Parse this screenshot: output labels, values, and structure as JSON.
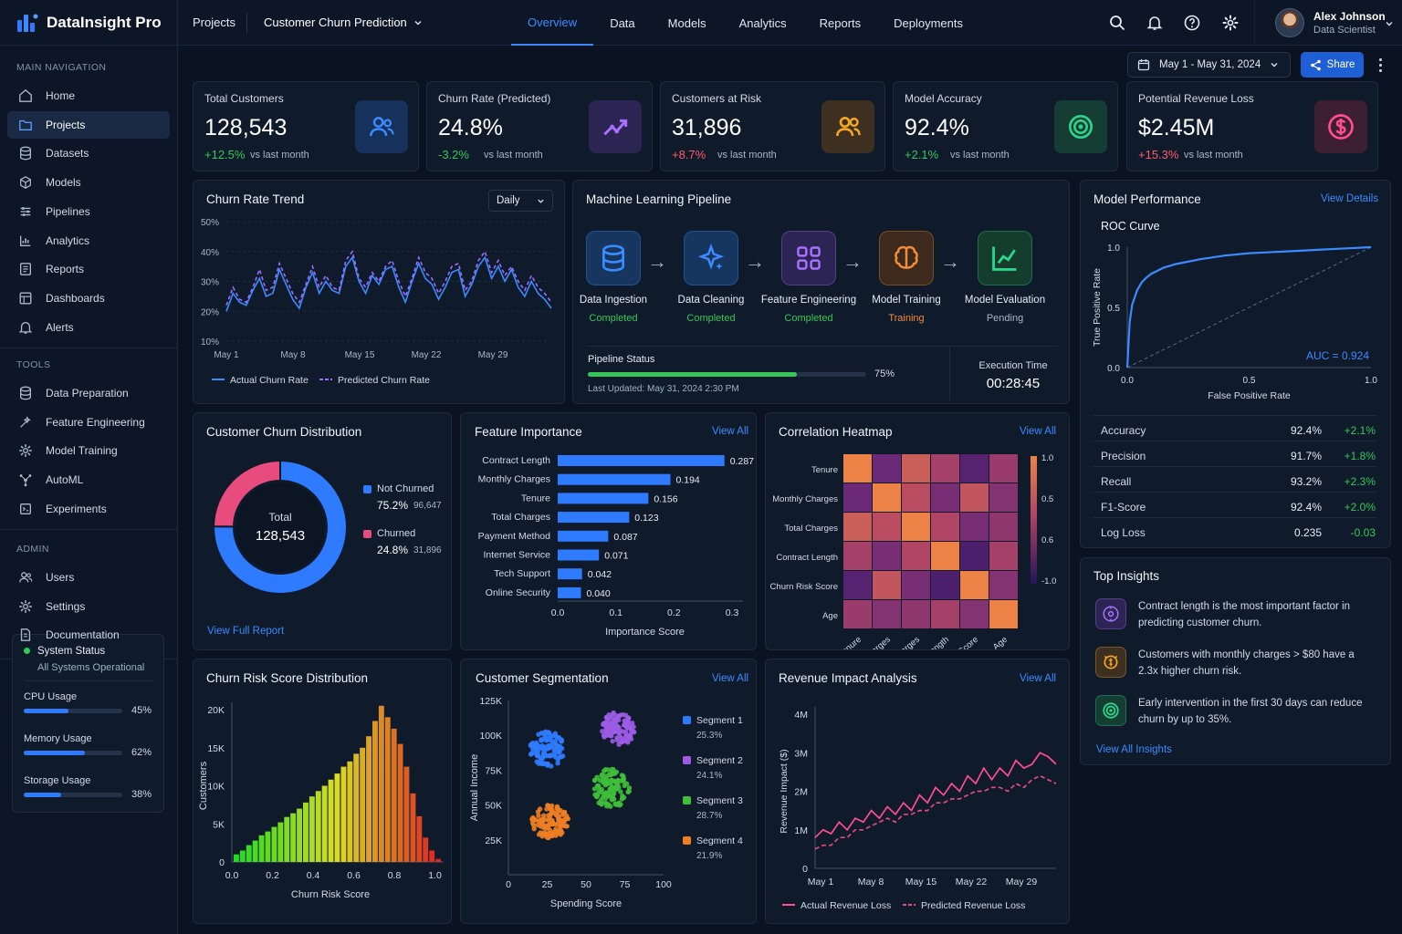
{
  "app": {
    "name": "DataInsight Pro"
  },
  "topbar": {
    "projects_label": "Projects",
    "project_name": "Customer Churn Prediction",
    "tabs": [
      {
        "label": "Overview",
        "active": true
      },
      {
        "label": "Data"
      },
      {
        "label": "Models"
      },
      {
        "label": "Analytics"
      },
      {
        "label": "Reports"
      },
      {
        "label": "Deployments"
      }
    ],
    "icons": [
      "search-icon",
      "bell-icon",
      "help-icon",
      "gear-icon"
    ]
  },
  "user": {
    "name": "Alex Johnson",
    "role": "Data Scientist"
  },
  "sidebar": {
    "sections": [
      {
        "title": "MAIN NAVIGATION",
        "items": [
          {
            "label": "Home",
            "icon": "home-icon"
          },
          {
            "label": "Projects",
            "icon": "folder-icon",
            "active": true
          },
          {
            "label": "Datasets",
            "icon": "database-icon"
          },
          {
            "label": "Models",
            "icon": "cube-icon"
          },
          {
            "label": "Pipelines",
            "icon": "pipeline-icon"
          },
          {
            "label": "Analytics",
            "icon": "chart-icon"
          },
          {
            "label": "Reports",
            "icon": "report-icon"
          },
          {
            "label": "Dashboards",
            "icon": "dashboard-icon"
          },
          {
            "label": "Alerts",
            "icon": "bell-icon"
          }
        ]
      },
      {
        "title": "TOOLS",
        "items": [
          {
            "label": "Data Preparation",
            "icon": "database-icon"
          },
          {
            "label": "Feature Engineering",
            "icon": "wand-icon"
          },
          {
            "label": "Model Training",
            "icon": "gear-icon"
          },
          {
            "label": "AutoML",
            "icon": "automl-icon"
          },
          {
            "label": "Experiments",
            "icon": "flask-icon"
          }
        ]
      },
      {
        "title": "ADMIN",
        "items": [
          {
            "label": "Users",
            "icon": "users-icon"
          },
          {
            "label": "Settings",
            "icon": "gear-icon"
          },
          {
            "label": "Documentation",
            "icon": "doc-icon"
          }
        ]
      }
    ]
  },
  "system": {
    "title": "System Status",
    "subtitle": "All Systems Operational",
    "status_color": "#35c759",
    "metrics": [
      {
        "label": "CPU Usage",
        "value": 45,
        "display": "45%"
      },
      {
        "label": "Memory Usage",
        "value": 62,
        "display": "62%"
      },
      {
        "label": "Storage Usage",
        "value": 38,
        "display": "38%"
      }
    ]
  },
  "toolbar": {
    "date_range": "May 1 - May 31, 2024",
    "share_label": "Share"
  },
  "kpis": [
    {
      "label": "Total Customers",
      "value": "128,543",
      "change": "+12.5%",
      "trend": "pos",
      "vs": "vs last month",
      "icon": "users-icon",
      "color": "#3b8bff",
      "bg": "#16325c"
    },
    {
      "label": "Churn Rate (Predicted)",
      "value": "24.8%",
      "change": "-3.2%",
      "trend": "pos",
      "vs": "vs last month",
      "icon": "trend-icon",
      "color": "#a970ff",
      "bg": "#2c2452"
    },
    {
      "label": "Customers at Risk",
      "value": "31,896",
      "change": "+8.7%",
      "trend": "neg",
      "vs": "vs last month",
      "icon": "users-risk-icon",
      "color": "#f5a623",
      "bg": "#3d3020"
    },
    {
      "label": "Model Accuracy",
      "value": "92.4%",
      "change": "+2.1%",
      "trend": "pos",
      "vs": "vs last month",
      "icon": "target-icon",
      "color": "#2bd68a",
      "bg": "#153d33"
    },
    {
      "label": "Potential Revenue Loss",
      "value": "$2.45M",
      "change": "+15.3%",
      "trend": "neg",
      "vs": "vs last month",
      "icon": "dollar-icon",
      "color": "#ff4d8d",
      "bg": "#3d1f33"
    }
  ],
  "churn_trend": {
    "title": "Churn Rate Trend",
    "period": "Daily",
    "legend": [
      "Actual Churn Rate",
      "Predicted Churn Rate"
    ]
  },
  "pipeline": {
    "title": "Machine Learning Pipeline",
    "steps": [
      {
        "label": "Data Ingestion",
        "status": "Completed",
        "state": "done",
        "icon": "database-icon",
        "color": "#3b8bff",
        "bg": "#17365f"
      },
      {
        "label": "Data Cleaning",
        "status": "Completed",
        "state": "done",
        "icon": "sparkle-icon",
        "color": "#3b8bff",
        "bg": "#17365f"
      },
      {
        "label": "Feature Engineering",
        "status": "Completed",
        "state": "done",
        "icon": "grid-icon",
        "color": "#a970ff",
        "bg": "#2c2452"
      },
      {
        "label": "Model Training",
        "status": "Training",
        "state": "training",
        "icon": "brain-icon",
        "color": "#f28c38",
        "bg": "#3d2a1c"
      },
      {
        "label": "Model Evaluation",
        "status": "Pending",
        "state": "pending",
        "icon": "chart-up-icon",
        "color": "#2bd68a",
        "bg": "#153d2e"
      }
    ],
    "status_label": "Pipeline Status",
    "progress": 75,
    "progress_display": "75%",
    "last_updated": "Last Updated: May 31, 2024 2:30 PM",
    "exec_label": "Execution Time",
    "exec_time": "00:28:45"
  },
  "performance": {
    "title": "Model Performance",
    "view": "View Details",
    "roc_title": "ROC Curve",
    "auc": "AUC = 0.924",
    "xlabel": "False Positive Rate",
    "ylabel": "True Positive Rate",
    "metrics": [
      {
        "name": "Accuracy",
        "value": "92.4%",
        "change": "+2.1%",
        "trend": "pos"
      },
      {
        "name": "Precision",
        "value": "91.7%",
        "change": "+1.8%",
        "trend": "pos"
      },
      {
        "name": "Recall",
        "value": "93.2%",
        "change": "+2.3%",
        "trend": "pos"
      },
      {
        "name": "F1-Score",
        "value": "92.4%",
        "change": "+2.0%",
        "trend": "pos"
      },
      {
        "name": "Log Loss",
        "value": "0.235",
        "change": "-0.03",
        "trend": "pos"
      }
    ]
  },
  "distribution": {
    "title": "Customer Churn Distribution",
    "center_label": "Total",
    "center_value": "128,543",
    "link": "View Full Report"
  },
  "feature_importance": {
    "title": "Feature Importance",
    "view": "View All"
  },
  "heatmap": {
    "title": "Correlation Heatmap",
    "view": "View All"
  },
  "risk": {
    "title": "Churn Risk Score Distribution"
  },
  "segmentation": {
    "title": "Customer Segmentation",
    "view": "View All"
  },
  "revenue": {
    "title": "Revenue Impact Analysis",
    "view": "View All"
  },
  "insights": {
    "title": "Top Insights",
    "link": "View All Insights",
    "items": [
      {
        "text": "Contract length is the most important factor in predicting customer churn.",
        "icon": "lightbulb-icon",
        "color": "#a970ff",
        "bg": "#2c2452"
      },
      {
        "text": "Customers with monthly charges > $80 have a 2.3x higher churn risk.",
        "icon": "coins-icon",
        "color": "#f5a623",
        "bg": "#3d3020"
      },
      {
        "text": "Early intervention in the first 30 days can reduce churn by up to 35%.",
        "icon": "target-icon",
        "color": "#2bd68a",
        "bg": "#153d33"
      }
    ]
  },
  "chart_data": [
    {
      "id": "churn_trend",
      "type": "line",
      "title": "Churn Rate Trend",
      "ylim": [
        10,
        50
      ],
      "yticks": [
        "10%",
        "20%",
        "30%",
        "40%",
        "50%"
      ],
      "xticks": [
        "May 1",
        "May 8",
        "May 15",
        "May 22",
        "May 29"
      ],
      "x": [
        1,
        2,
        3,
        4,
        5,
        6,
        7,
        8,
        9,
        10,
        11,
        12,
        13,
        14,
        15,
        16,
        17,
        18,
        19,
        20,
        21,
        22,
        23,
        24,
        25,
        26,
        27,
        28,
        29,
        30,
        31,
        32,
        33,
        34,
        35,
        36,
        37,
        38,
        39,
        40,
        41,
        42,
        43,
        44,
        45,
        46,
        47,
        48,
        49,
        50
      ],
      "series": [
        {
          "name": "Actual Churn Rate",
          "color": "#3b8bff",
          "values": [
            20,
            26,
            23,
            22,
            27,
            31,
            25,
            26,
            34,
            29,
            24,
            21,
            28,
            33,
            26,
            30,
            27,
            26,
            35,
            38,
            30,
            26,
            32,
            29,
            34,
            35,
            28,
            23,
            30,
            36,
            31,
            29,
            24,
            28,
            33,
            34,
            25,
            29,
            35,
            38,
            31,
            35,
            30,
            34,
            28,
            25,
            30,
            26,
            24,
            21
          ]
        },
        {
          "name": "Predicted Churn Rate",
          "color": "#9c6cff",
          "dashed": true,
          "values": [
            22,
            28,
            24,
            23,
            28,
            34,
            27,
            28,
            36,
            31,
            26,
            23,
            29,
            35,
            28,
            32,
            28,
            27,
            37,
            40,
            31,
            28,
            33,
            30,
            35,
            37,
            30,
            25,
            31,
            38,
            33,
            31,
            26,
            30,
            35,
            36,
            27,
            30,
            37,
            40,
            33,
            37,
            32,
            35,
            30,
            27,
            32,
            28,
            26,
            23
          ]
        }
      ]
    },
    {
      "id": "roc",
      "type": "line",
      "xlim": [
        0,
        1
      ],
      "ylim": [
        0,
        1
      ],
      "xticks": [
        "0.0",
        "0.5",
        "1.0"
      ],
      "yticks": [
        "0.0",
        "0.5",
        "1.0"
      ],
      "x": [
        0,
        0.01,
        0.02,
        0.04,
        0.06,
        0.08,
        0.1,
        0.15,
        0.2,
        0.3,
        0.4,
        0.5,
        0.6,
        0.7,
        0.8,
        0.9,
        1.0
      ],
      "series": [
        {
          "name": "ROC",
          "values": [
            0,
            0.38,
            0.52,
            0.64,
            0.71,
            0.75,
            0.78,
            0.83,
            0.86,
            0.9,
            0.93,
            0.95,
            0.96,
            0.97,
            0.98,
            0.99,
            1.0
          ]
        }
      ]
    },
    {
      "id": "churn_distribution",
      "type": "pie",
      "categories": [
        "Not Churned",
        "Churned"
      ],
      "values": [
        75.2,
        24.8
      ],
      "display_values": [
        "75.2%",
        "24.8%"
      ],
      "counts": [
        "96,647",
        "31,896"
      ],
      "colors": [
        "#2f7bff",
        "#e84b7e"
      ]
    },
    {
      "id": "feature_importance",
      "type": "bar",
      "categories": [
        "Contract Length",
        "Monthly Charges",
        "Tenure",
        "Total Charges",
        "Payment Method",
        "Internet Service",
        "Tech Support",
        "Online Security"
      ],
      "values": [
        0.287,
        0.194,
        0.156,
        0.123,
        0.087,
        0.071,
        0.042,
        0.04
      ],
      "display_values": [
        "0.287",
        "0.194",
        "0.156",
        "0.123",
        "0.087",
        "0.071",
        "0.042",
        "0.040"
      ],
      "xlim": [
        0,
        0.3
      ],
      "xticks": [
        "0.0",
        "0.1",
        "0.2",
        "0.3"
      ],
      "xlabel": "Importance Score"
    },
    {
      "id": "heatmap",
      "type": "heatmap",
      "labels": [
        "Tenure",
        "Monthly Charges",
        "Total Charges",
        "Contract Length",
        "Churn Risk Score",
        "Age"
      ],
      "scale_ticks": [
        "1.0",
        "0.5",
        "0.6",
        "-1.0"
      ],
      "matrix": [
        [
          1.0,
          -0.3,
          0.6,
          0.2,
          -0.5,
          0.1
        ],
        [
          -0.3,
          1.0,
          0.4,
          -0.2,
          0.5,
          -0.1
        ],
        [
          0.6,
          0.4,
          1.0,
          0.3,
          -0.2,
          0.0
        ],
        [
          0.2,
          -0.2,
          0.3,
          1.0,
          -0.6,
          0.2
        ],
        [
          -0.5,
          0.5,
          -0.2,
          -0.6,
          1.0,
          -0.1
        ],
        [
          0.1,
          -0.1,
          0.0,
          0.2,
          -0.1,
          1.0
        ]
      ]
    },
    {
      "id": "risk_distribution",
      "type": "bar",
      "xlabel": "Churn Risk Score",
      "ylabel": "Customers",
      "ylim": [
        0,
        20000
      ],
      "yticks": [
        "0",
        "5K",
        "10K",
        "15K",
        "20K"
      ],
      "xticks": [
        "0.0",
        "0.2",
        "0.4",
        "0.6",
        "0.8",
        "1.0"
      ],
      "values": [
        1000,
        1500,
        2200,
        2800,
        3500,
        4000,
        4600,
        5200,
        5900,
        6400,
        7000,
        7800,
        8600,
        9300,
        10000,
        10800,
        11600,
        12500,
        13200,
        14200,
        15000,
        16500,
        18500,
        20500,
        19000,
        17500,
        15500,
        12500,
        9000,
        6000,
        3200,
        1500,
        400
      ]
    },
    {
      "id": "segmentation",
      "type": "scatter",
      "xlabel": "Spending Score",
      "ylabel": "Annual Income",
      "xlim": [
        0,
        100
      ],
      "ylim": [
        0,
        125000
      ],
      "xticks": [
        "0",
        "25",
        "50",
        "75",
        "100"
      ],
      "yticks": [
        "25K",
        "50K",
        "75K",
        "100K",
        "125K"
      ],
      "series": [
        {
          "name": "Segment 1",
          "share": "25.3%",
          "color": "#2f7bff",
          "cx": 25,
          "cy": 90000,
          "rx": 11,
          "ry": 13000
        },
        {
          "name": "Segment 2",
          "share": "24.1%",
          "color": "#9c5ce6",
          "cx": 71,
          "cy": 105000,
          "rx": 11,
          "ry": 12000
        },
        {
          "name": "Segment 3",
          "share": "28.7%",
          "color": "#3fbf3a",
          "cx": 66,
          "cy": 62000,
          "rx": 12,
          "ry": 14000
        },
        {
          "name": "Segment 4",
          "share": "21.9%",
          "color": "#f07f22",
          "cx": 27,
          "cy": 38000,
          "rx": 12,
          "ry": 12000
        }
      ]
    },
    {
      "id": "revenue",
      "type": "line",
      "ylabel": "Revenue Impact ($)",
      "ylim": [
        0,
        4
      ],
      "yticks": [
        "0",
        "1M",
        "2M",
        "3M",
        "4M"
      ],
      "xticks": [
        "May 1",
        "May 8",
        "May 15",
        "May 22",
        "May 29"
      ],
      "x": [
        1,
        2,
        3,
        4,
        5,
        6,
        7,
        8,
        9,
        10,
        11,
        12,
        13,
        14,
        15,
        16,
        17,
        18,
        19,
        20,
        21,
        22,
        23,
        24,
        25,
        26,
        27,
        28,
        29,
        30,
        31
      ],
      "series": [
        {
          "name": "Actual Revenue Loss",
          "color": "#ff4d8d",
          "values": [
            0.8,
            1.0,
            0.9,
            1.2,
            1.0,
            1.3,
            1.2,
            1.5,
            1.3,
            1.6,
            1.4,
            1.7,
            1.5,
            1.9,
            1.7,
            2.1,
            1.9,
            2.2,
            2.0,
            2.4,
            2.2,
            2.6,
            2.3,
            2.6,
            2.4,
            2.8,
            2.6,
            2.7,
            3.0,
            2.9,
            2.7
          ]
        },
        {
          "name": "Predicted Revenue Loss",
          "color": "#e14a7a",
          "dashed": true,
          "values": [
            0.5,
            0.6,
            0.6,
            0.8,
            0.8,
            1.0,
            1.0,
            1.1,
            1.2,
            1.3,
            1.2,
            1.4,
            1.4,
            1.5,
            1.5,
            1.7,
            1.7,
            1.8,
            1.8,
            1.9,
            2.0,
            2.0,
            2.1,
            2.1,
            2.0,
            2.2,
            2.1,
            2.3,
            2.4,
            2.3,
            2.2
          ]
        }
      ]
    }
  ]
}
